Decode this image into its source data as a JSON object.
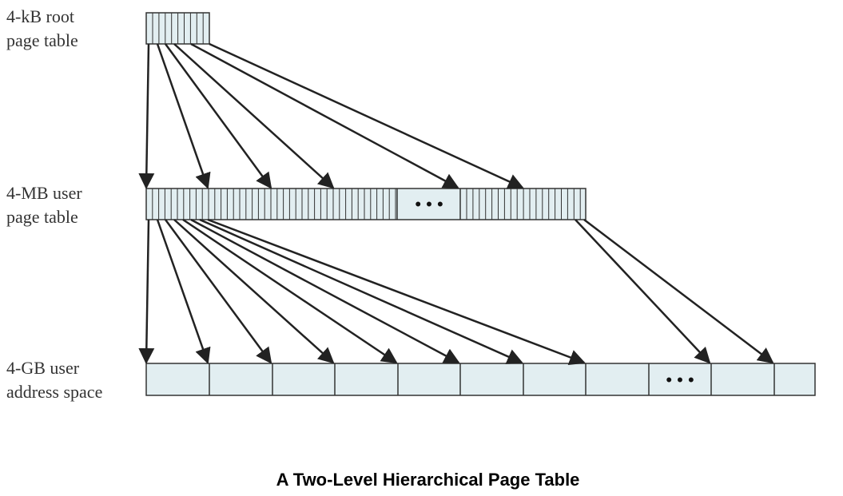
{
  "labels": {
    "root": [
      "4-kB root",
      "page table"
    ],
    "user_table": [
      "4-MB user",
      "page table"
    ],
    "address_space": [
      "4-GB user",
      "address space"
    ]
  },
  "ellipsis": "• • •",
  "caption": "A Two-Level Hierarchical Page Table",
  "colors": {
    "box_fill": "#e2eef1",
    "stroke": "#333333",
    "arrow": "#222222"
  }
}
